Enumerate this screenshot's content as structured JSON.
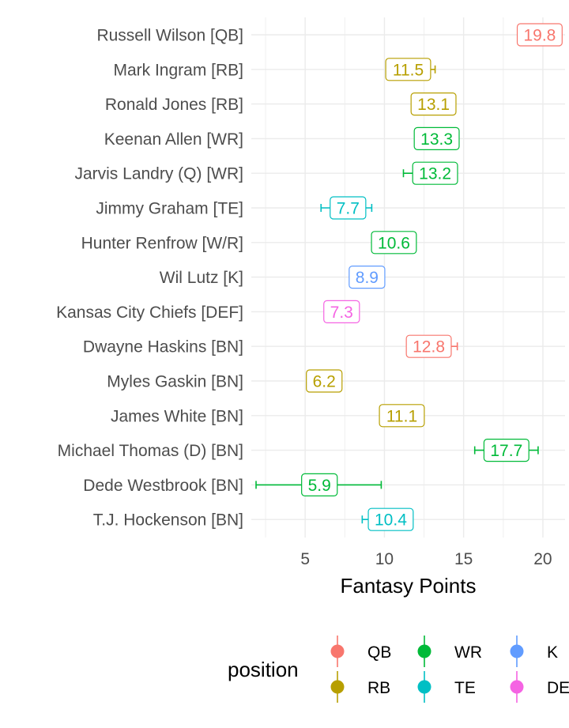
{
  "chart_data": {
    "type": "dot-with-error-bars",
    "xlabel": "Fantasy Points",
    "xlim": [
      1.6,
      21.4
    ],
    "xticks": [
      5,
      10,
      15,
      20
    ],
    "grid": true,
    "legend": {
      "title": "position",
      "placement": "bottom",
      "entries": [
        {
          "name": "QB",
          "color": "#F8766D"
        },
        {
          "name": "WR",
          "color": "#00BA38"
        },
        {
          "name": "K",
          "color": "#619CFF"
        },
        {
          "name": "RB",
          "color": "#B79F00"
        },
        {
          "name": "TE",
          "color": "#00BFC4"
        },
        {
          "name": "DE",
          "color": "#F564E3"
        }
      ]
    },
    "players": [
      {
        "name": "Russell Wilson [QB]",
        "position": "QB",
        "value": 19.8,
        "low": 19.8,
        "high": 19.8
      },
      {
        "name": "Mark Ingram [RB]",
        "position": "RB",
        "value": 11.5,
        "low": 11.5,
        "high": 13.2
      },
      {
        "name": "Ronald Jones [RB]",
        "position": "RB",
        "value": 13.1,
        "low": 13.1,
        "high": 13.1
      },
      {
        "name": "Keenan Allen [WR]",
        "position": "WR",
        "value": 13.3,
        "low": 13.3,
        "high": 13.3
      },
      {
        "name": "Jarvis Landry (Q) [WR]",
        "position": "WR",
        "value": 13.2,
        "low": 11.2,
        "high": 13.2
      },
      {
        "name": "Jimmy Graham [TE]",
        "position": "TE",
        "value": 7.7,
        "low": 6.0,
        "high": 9.2
      },
      {
        "name": "Hunter Renfrow [W/R]",
        "position": "WR",
        "value": 10.6,
        "low": 10.6,
        "high": 10.6
      },
      {
        "name": "Wil Lutz [K]",
        "position": "K",
        "value": 8.9,
        "low": 8.9,
        "high": 8.9
      },
      {
        "name": "Kansas City Chiefs [DEF]",
        "position": "DE",
        "value": 7.3,
        "low": 7.3,
        "high": 7.3
      },
      {
        "name": "Dwayne Haskins [BN]",
        "position": "QB",
        "value": 12.8,
        "low": 12.8,
        "high": 14.6
      },
      {
        "name": "Myles Gaskin [BN]",
        "position": "RB",
        "value": 6.2,
        "low": 6.2,
        "high": 6.2
      },
      {
        "name": "James White [BN]",
        "position": "RB",
        "value": 11.1,
        "low": 11.1,
        "high": 11.1
      },
      {
        "name": "Michael Thomas (D) [BN]",
        "position": "WR",
        "value": 17.7,
        "low": 15.7,
        "high": 19.7
      },
      {
        "name": "Dede Westbrook [BN]",
        "position": "WR",
        "value": 5.9,
        "low": 1.9,
        "high": 9.8
      },
      {
        "name": "T.J. Hockenson [BN]",
        "position": "TE",
        "value": 10.4,
        "low": 8.6,
        "high": 10.4
      }
    ]
  }
}
